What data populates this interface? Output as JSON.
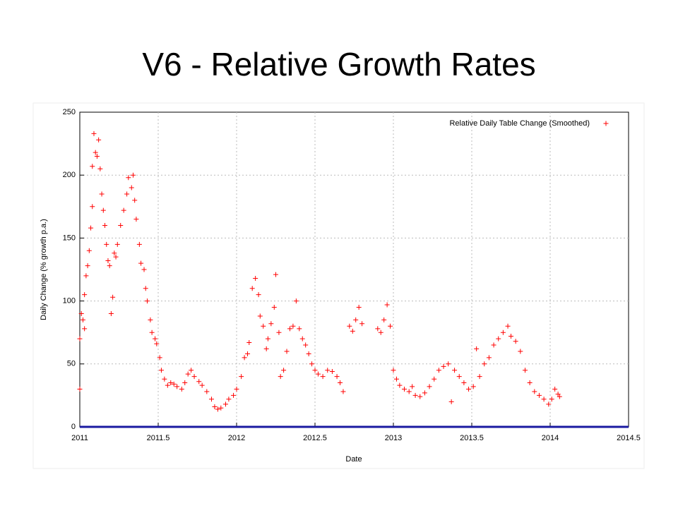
{
  "chart_data": {
    "type": "scatter",
    "title": "V6 - Relative Growth Rates",
    "xlabel": "Date",
    "ylabel": "Daily Change (% growth p.a.)",
    "xlim": [
      2011,
      2014.5
    ],
    "xticks": [
      2011,
      2011.5,
      2012,
      2012.5,
      2013,
      2013.5,
      2014,
      2014.5
    ],
    "ylim": [
      0,
      250
    ],
    "yticks": [
      0,
      50,
      100,
      150,
      200,
      250
    ],
    "grid": true,
    "legend": "upper right",
    "series": [
      {
        "name": "Relative Daily Table Change (Smoothed)",
        "color": "#ff0000",
        "x": [
          2011.0,
          2011.0,
          2011.01,
          2011.02,
          2011.03,
          2011.03,
          2011.04,
          2011.05,
          2011.06,
          2011.07,
          2011.08,
          2011.08,
          2011.09,
          2011.1,
          2011.11,
          2011.12,
          2011.13,
          2011.14,
          2011.15,
          2011.16,
          2011.17,
          2011.18,
          2011.19,
          2011.2,
          2011.21,
          2011.22,
          2011.23,
          2011.24,
          2011.26,
          2011.28,
          2011.3,
          2011.31,
          2011.33,
          2011.34,
          2011.35,
          2011.36,
          2011.38,
          2011.39,
          2011.41,
          2011.42,
          2011.43,
          2011.45,
          2011.46,
          2011.48,
          2011.49,
          2011.51,
          2011.52,
          2011.54,
          2011.56,
          2011.58,
          2011.6,
          2011.62,
          2011.65,
          2011.67,
          2011.69,
          2011.71,
          2011.73,
          2011.76,
          2011.78,
          2011.81,
          2011.84,
          2011.86,
          2011.88,
          2011.9,
          2011.93,
          2011.95,
          2011.98,
          2012.0,
          2012.03,
          2012.05,
          2012.07,
          2012.08,
          2012.1,
          2012.12,
          2012.14,
          2012.15,
          2012.17,
          2012.19,
          2012.2,
          2012.22,
          2012.24,
          2012.25,
          2012.27,
          2012.28,
          2012.3,
          2012.32,
          2012.34,
          2012.36,
          2012.38,
          2012.4,
          2012.42,
          2012.44,
          2012.46,
          2012.48,
          2012.5,
          2012.52,
          2012.55,
          2012.58,
          2012.61,
          2012.64,
          2012.66,
          2012.68,
          2012.72,
          2012.74,
          2012.76,
          2012.78,
          2012.8,
          2012.9,
          2012.92,
          2012.94,
          2012.96,
          2012.98,
          2013.0,
          2013.02,
          2013.04,
          2013.07,
          2013.1,
          2013.12,
          2013.14,
          2013.17,
          2013.2,
          2013.23,
          2013.26,
          2013.29,
          2013.32,
          2013.35,
          2013.37,
          2013.39,
          2013.42,
          2013.45,
          2013.48,
          2013.51,
          2013.53,
          2013.55,
          2013.58,
          2013.61,
          2013.64,
          2013.67,
          2013.7,
          2013.73,
          2013.75,
          2013.78,
          2013.81,
          2013.84,
          2013.87,
          2013.9,
          2013.93,
          2013.96,
          2013.99,
          2014.01,
          2014.03,
          2014.05,
          2014.06
        ],
        "values": [
          30,
          70,
          90,
          85,
          78,
          105,
          120,
          128,
          140,
          158,
          175,
          207,
          233,
          218,
          215,
          228,
          205,
          185,
          172,
          160,
          145,
          132,
          128,
          90,
          103,
          138,
          135,
          145,
          160,
          172,
          185,
          198,
          190,
          200,
          180,
          165,
          145,
          130,
          125,
          110,
          100,
          85,
          75,
          70,
          66,
          55,
          45,
          38,
          33,
          35,
          34,
          32,
          30,
          35,
          42,
          45,
          40,
          36,
          33,
          28,
          22,
          16,
          14,
          15,
          18,
          22,
          25,
          30,
          40,
          55,
          58,
          67,
          110,
          118,
          105,
          88,
          80,
          62,
          70,
          82,
          95,
          121,
          75,
          40,
          45,
          60,
          78,
          80,
          100,
          78,
          70,
          65,
          58,
          50,
          45,
          42,
          40,
          45,
          44,
          40,
          35,
          28,
          80,
          76,
          85,
          95,
          82,
          78,
          75,
          85,
          97,
          80,
          45,
          38,
          33,
          30,
          28,
          32,
          25,
          24,
          27,
          32,
          38,
          45,
          48,
          50,
          20,
          45,
          40,
          35,
          30,
          32,
          62,
          40,
          50,
          55,
          65,
          70,
          75,
          80,
          72,
          68,
          60,
          45,
          35,
          28,
          25,
          22,
          18,
          22,
          30,
          26,
          24
        ]
      }
    ]
  }
}
